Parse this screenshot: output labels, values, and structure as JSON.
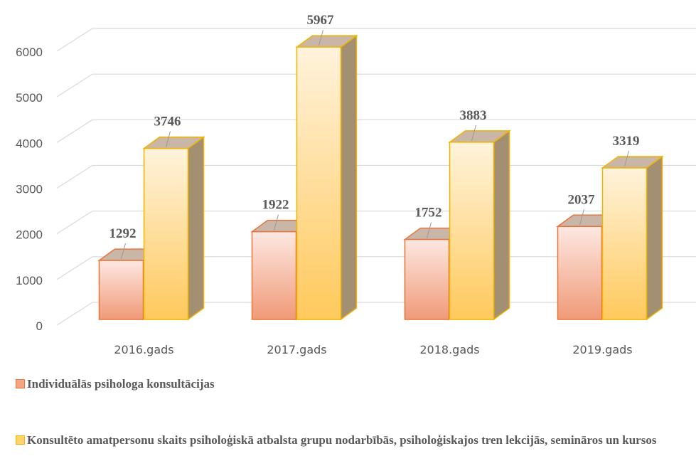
{
  "chart_data": {
    "type": "bar3d",
    "categories": [
      "2016.gads",
      "2017.gads",
      "2018.gads",
      "2019.gads"
    ],
    "series": [
      {
        "name": "Individuālās psihologa konsultācijas",
        "color": "#f4a582",
        "values": [
          1292,
          1922,
          1752,
          2037
        ]
      },
      {
        "name": "Konsultēto amatpersonu skaits psiholoģiskā atbalsta grupu nodarbībās, psiholoģiskajos tren lekcijās, semināros un kursos",
        "color": "#ffd36e",
        "values": [
          3746,
          5967,
          3883,
          3319
        ]
      }
    ],
    "ylim": [
      0,
      6000
    ],
    "yticks": [
      0,
      1000,
      2000,
      3000,
      4000,
      5000,
      6000
    ],
    "grid": true
  }
}
